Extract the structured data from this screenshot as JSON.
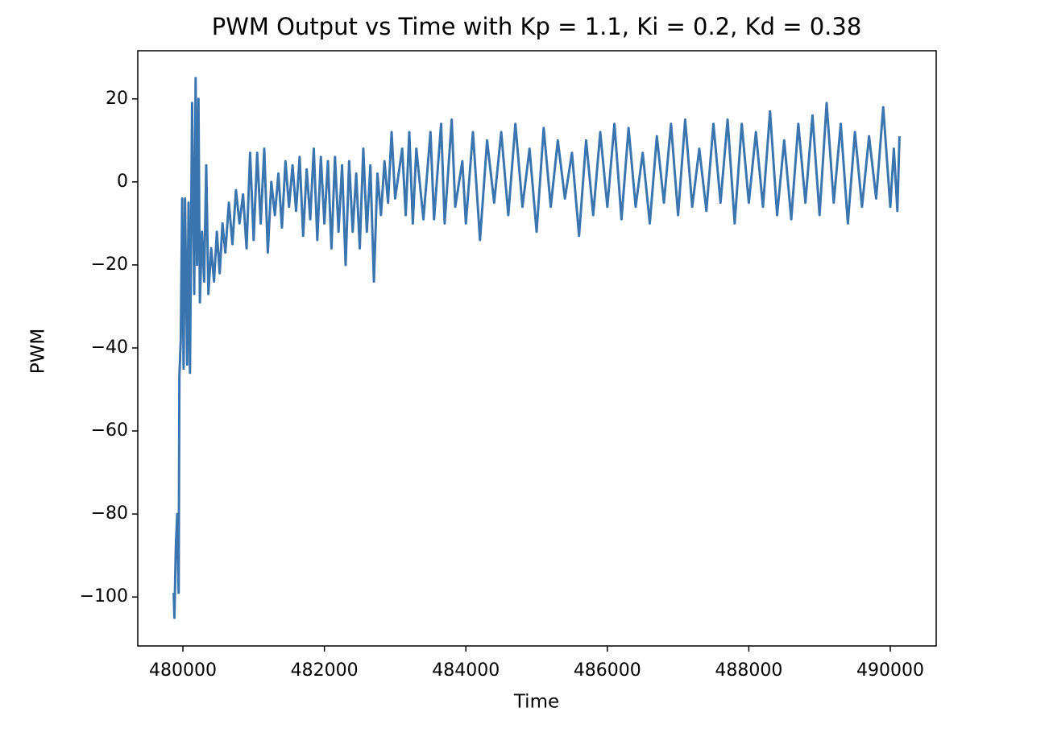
{
  "chart_data": {
    "type": "line",
    "title": "PWM Output vs Time with Kp = 1.1, Ki = 0.2, Kd = 0.38",
    "x_label": "Time",
    "y_label": "PWM",
    "xlim": [
      479362,
      490649
    ],
    "ylim": [
      -111.8,
      31.6
    ],
    "xticks": [
      480000,
      482000,
      484000,
      486000,
      488000,
      490000
    ],
    "yticks": [
      {
        "value": -100,
        "label": "−100"
      },
      {
        "value": -80,
        "label": "−80"
      },
      {
        "value": -60,
        "label": "−60"
      },
      {
        "value": -40,
        "label": "−40"
      },
      {
        "value": -20,
        "label": "−20"
      },
      0,
      20
    ],
    "x": [
      479870,
      479880,
      479900,
      479920,
      479940,
      479950,
      479970,
      479990,
      480010,
      480030,
      480060,
      480080,
      480100,
      480130,
      480160,
      480180,
      480200,
      480220,
      480240,
      480270,
      480300,
      480330,
      480360,
      480400,
      480440,
      480480,
      480520,
      480560,
      480600,
      480650,
      480700,
      480750,
      480800,
      480850,
      480900,
      480950,
      481000,
      481050,
      481100,
      481150,
      481200,
      481250,
      481300,
      481350,
      481400,
      481450,
      481500,
      481550,
      481600,
      481650,
      481700,
      481750,
      481800,
      481850,
      481900,
      481950,
      482000,
      482050,
      482100,
      482150,
      482200,
      482250,
      482300,
      482350,
      482400,
      482450,
      482500,
      482550,
      482600,
      482650,
      482700,
      482750,
      482800,
      482850,
      482900,
      482950,
      483000,
      483100,
      483150,
      483200,
      483250,
      483300,
      483400,
      483500,
      483550,
      483650,
      483700,
      483800,
      483850,
      483950,
      484000,
      484100,
      484200,
      484300,
      484400,
      484500,
      484600,
      484700,
      484800,
      484900,
      485000,
      485100,
      485200,
      485300,
      485400,
      485500,
      485600,
      485700,
      485800,
      485900,
      486000,
      486100,
      486200,
      486300,
      486400,
      486500,
      486600,
      486700,
      486800,
      486900,
      487000,
      487100,
      487200,
      487300,
      487400,
      487500,
      487600,
      487700,
      487800,
      487900,
      488000,
      488100,
      488200,
      488300,
      488400,
      488500,
      488600,
      488700,
      488800,
      488900,
      489000,
      489100,
      489200,
      489300,
      489400,
      489500,
      489600,
      489700,
      489800,
      489900,
      490000,
      490050,
      490100,
      490130
    ],
    "series": [
      {
        "color": "#3b75af",
        "values": [
          -99,
          -105,
          -88,
          -80,
          -99,
          -47,
          -38,
          -4,
          -45,
          -4,
          -44,
          -5,
          -46,
          19,
          -27,
          25,
          -20,
          20,
          -29,
          -12,
          -24,
          4,
          -27,
          -16,
          -24,
          -12,
          -22,
          -10,
          -17,
          -5,
          -15,
          -2,
          -10,
          -3,
          -16,
          7,
          -14,
          7,
          -10,
          8,
          -17,
          0,
          -8,
          2,
          -11,
          5,
          -6,
          4,
          -7,
          6,
          -13,
          3,
          -9,
          8,
          -14,
          6,
          -10,
          5,
          -16,
          6,
          -12,
          4,
          -20,
          5,
          -12,
          2,
          -16,
          8,
          -12,
          4,
          -24,
          2,
          -8,
          5,
          -5,
          12,
          -4,
          8,
          -8,
          12,
          -10,
          8,
          -9,
          12,
          -9,
          14,
          -10,
          15,
          -6,
          5,
          -10,
          12,
          -14,
          10,
          -5,
          12,
          -8,
          14,
          -6,
          8,
          -12,
          13,
          -6,
          10,
          -4,
          7,
          -13,
          10,
          -8,
          12,
          -6,
          14,
          -9,
          13,
          -6,
          7,
          -10,
          11,
          -5,
          14,
          -8,
          15,
          -6,
          8,
          -7,
          14,
          -5,
          15,
          -10,
          14,
          -5,
          12,
          -6,
          17,
          -8,
          10,
          -9,
          14,
          -5,
          16,
          -8,
          19,
          -5,
          14,
          -10,
          12,
          -6,
          11,
          -4,
          18,
          -6,
          8,
          -7,
          11
        ]
      }
    ]
  }
}
